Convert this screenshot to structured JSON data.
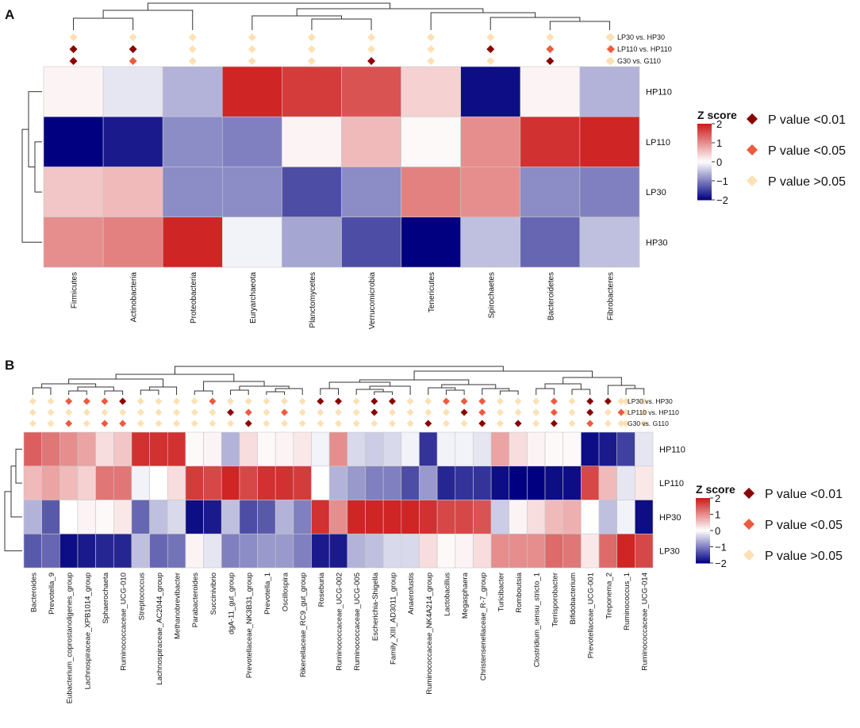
{
  "colors": {
    "low": "#000080",
    "mid": "#ffffff",
    "high": "#cc1a1a",
    "p001": "#8b0000",
    "p005": "#ee5a3f",
    "pns": "#fde0b4"
  },
  "legend": {
    "title": "Z score",
    "ticks": [
      "2",
      "1",
      "0",
      "−1",
      "−2"
    ],
    "p_labels": [
      "P value <0.01",
      "P value <0.05",
      "P value >0.05"
    ]
  },
  "comparisons": [
    "LP30 vs. HP30",
    "LP110 vs. HP110",
    "G30 vs. G110"
  ],
  "chart_data": [
    {
      "type": "heatmap",
      "panel": "A",
      "title": "",
      "rows": [
        "HP110",
        "LP110",
        "LP30",
        "HP30"
      ],
      "columns": [
        "Firmicutes",
        "Actinobacteria",
        "Proteobacteria",
        "Euryarchaeota",
        "Planctomycetes",
        "Verrucomicrobia",
        "Tenericutes",
        "Spirochaetes",
        "Bacteroidetes",
        "Fibrobacteres"
      ],
      "values": [
        [
          0.1,
          -0.2,
          -0.6,
          1.9,
          1.7,
          1.5,
          0.4,
          -1.9,
          0.1,
          -0.6
        ],
        [
          -2.0,
          -1.8,
          -0.9,
          -1.0,
          0.1,
          0.6,
          0.05,
          1.0,
          1.8,
          1.9
        ],
        [
          0.5,
          0.6,
          -0.9,
          -0.9,
          -1.4,
          -0.9,
          1.1,
          1.0,
          -0.9,
          -1.0
        ],
        [
          1.0,
          1.1,
          1.9,
          -0.1,
          -0.7,
          -1.4,
          -2.0,
          -0.5,
          -1.2,
          -0.5
        ]
      ],
      "significance": [
        [
          "ns",
          "ns",
          "ns",
          "ns",
          "ns",
          "ns",
          "ns",
          "ns",
          "ns",
          "ns"
        ],
        [
          "p001",
          "p001",
          "ns",
          "ns",
          "ns",
          "ns",
          "ns",
          "p001",
          "p005",
          "ns"
        ],
        [
          "p001",
          "p005",
          "ns",
          "ns",
          "ns",
          "p001",
          "ns",
          "ns",
          "p001",
          "ns"
        ]
      ]
    },
    {
      "type": "heatmap",
      "panel": "B",
      "title": "",
      "rows": [
        "HP110",
        "LP110",
        "HP30",
        "LP30"
      ],
      "columns": [
        "Bacteroides",
        "Prevotella_9",
        "Eubacterium_coprostanoligenes_group",
        "Lachnospiraceae_XPB1014_group",
        "Sphaerochaeta",
        "Ruminococcaceae_UCG-010",
        "Streptococcus",
        "Lachnospiraceae_AC2044_group",
        "Methanobrevibacter",
        "Parabacteroides",
        "Succinivibrio",
        "dgA-11_gut_group",
        "Prevotellaceae_NK3B31_group",
        "Prevotella_1",
        "Oscillospira",
        "Rikenellaceae_RC9_gut_group",
        "Roseburia",
        "Ruminococcaceae_UCG-002",
        "Ruminococcaceae_UCG-005",
        "Escherichia-Shigella",
        "Family_XIII_AD3011_group",
        "Anaerofustis",
        "Ruminococcaceae_NK4A214_group",
        "Lactobacillus",
        "Megasphaera",
        "Christensenellaceae_R-7_group",
        "Turicibacter",
        "Romboutsia",
        "Clostridium_sensu_stricto_1",
        "Terrisporobacter",
        "Bifidobacterium",
        "Prevotellaceae_UCG-001",
        "Treponema_2",
        "Ruminococcus_1",
        "Ruminococcaceae_UCG-014"
      ],
      "values": [
        [
          1.4,
          1.2,
          1.0,
          0.8,
          0.3,
          0.5,
          1.8,
          1.8,
          1.8,
          0.05,
          0.1,
          -0.6,
          0.3,
          0.05,
          0.1,
          0.2,
          -0.1,
          1.0,
          -0.3,
          -0.4,
          -0.3,
          -0.1,
          -1.6,
          -0.1,
          -0.1,
          -0.2,
          0.8,
          0.3,
          0.1,
          0.05,
          0.05,
          -1.9,
          -1.8,
          -1.5,
          -0.2
        ],
        [
          0.6,
          0.8,
          0.6,
          0.4,
          1.2,
          1.2,
          -0.1,
          0.0,
          0.3,
          1.7,
          1.6,
          1.9,
          1.6,
          1.8,
          1.8,
          1.7,
          0.0,
          -0.6,
          -0.8,
          -1.0,
          -1.0,
          -1.4,
          -0.8,
          -1.7,
          -1.6,
          -1.6,
          -1.9,
          -2.0,
          -2.0,
          -1.9,
          -1.9,
          1.6,
          0.6,
          -0.2,
          0.2
        ],
        [
          -0.6,
          -1.3,
          0.0,
          0.1,
          0.05,
          0.2,
          -1.2,
          -0.5,
          -0.3,
          -1.9,
          -1.8,
          -0.5,
          -1.4,
          -1.3,
          -0.6,
          -1.0,
          1.8,
          1.0,
          1.9,
          1.9,
          1.9,
          1.9,
          1.8,
          1.6,
          1.6,
          1.5,
          -0.4,
          0.1,
          0.3,
          0.6,
          0.7,
          0.0,
          -0.5,
          -0.1,
          -1.9
        ],
        [
          -1.3,
          -1.2,
          -1.9,
          -1.8,
          -1.7,
          -1.7,
          -0.5,
          -1.2,
          -1.1,
          0.1,
          -0.2,
          -1.0,
          -0.9,
          -0.8,
          -0.8,
          -1.0,
          -1.8,
          -1.8,
          -0.6,
          -0.5,
          -0.3,
          -0.3,
          0.3,
          0.05,
          0.1,
          0.3,
          1.0,
          1.0,
          1.0,
          1.3,
          1.2,
          0.2,
          1.3,
          1.9,
          1.6
        ]
      ],
      "significance": [
        [
          "ns",
          "ns",
          "p005",
          "p005",
          "p005",
          "p001",
          "ns",
          "ns",
          "ns",
          "ns",
          "p005",
          "ns",
          "ns",
          "ns",
          "ns",
          "ns",
          "p001",
          "p001",
          "ns",
          "p001",
          "p001",
          "ns",
          "ns",
          "p005",
          "p005",
          "p005",
          "ns",
          "ns",
          "ns",
          "p005",
          "ns",
          "p001",
          "p001",
          "ns",
          "ns"
        ],
        [
          "ns",
          "ns",
          "ns",
          "ns",
          "ns",
          "ns",
          "ns",
          "ns",
          "ns",
          "ns",
          "ns",
          "p001",
          "p005",
          "ns",
          "p005",
          "ns",
          "ns",
          "ns",
          "ns",
          "p001",
          "ns",
          "ns",
          "ns",
          "ns",
          "p001",
          "p005",
          "ns",
          "ns",
          "ns",
          "p005",
          "ns",
          "p001",
          "ns",
          "ns",
          "ns"
        ],
        [
          "ns",
          "ns",
          "p005",
          "ns",
          "p005",
          "p005",
          "ns",
          "ns",
          "ns",
          "ns",
          "ns",
          "ns",
          "p001",
          "ns",
          "ns",
          "ns",
          "ns",
          "ns",
          "ns",
          "ns",
          "ns",
          "ns",
          "p001",
          "ns",
          "ns",
          "p001",
          "ns",
          "p001",
          "ns",
          "p001",
          "ns",
          "p005",
          "ns",
          "ns",
          "ns"
        ]
      ]
    }
  ]
}
